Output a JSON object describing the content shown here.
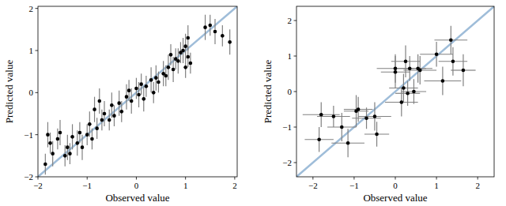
{
  "chart_data": [
    {
      "type": "scatter",
      "x_label": "Observed value",
      "y_label": "Predicted value",
      "color": "#000000",
      "error_color": "#808080",
      "line_color": "#9fbdd9",
      "xlim": [
        -2,
        2.05
      ],
      "ylim": [
        -2,
        2.05
      ],
      "xticks": [
        {
          "value": -2,
          "label": "−2"
        },
        {
          "value": -1,
          "label": "−1"
        },
        0,
        1,
        2
      ],
      "yticks": [
        {
          "value": -2,
          "label": "−2"
        },
        {
          "value": -1,
          "label": "−1"
        },
        0,
        1,
        2
      ],
      "x": [
        -1.85,
        -1.8,
        -1.75,
        -1.7,
        -1.6,
        -1.55,
        -1.45,
        -1.4,
        -1.35,
        -1.3,
        -1.2,
        -1.15,
        -1.1,
        -1.0,
        -0.95,
        -0.9,
        -0.85,
        -0.8,
        -0.75,
        -0.7,
        -0.65,
        -0.55,
        -0.5,
        -0.45,
        -0.35,
        -0.3,
        -0.2,
        -0.15,
        -0.1,
        0.0,
        0.05,
        0.1,
        0.15,
        0.2,
        0.3,
        0.35,
        0.4,
        0.45,
        0.55,
        0.6,
        0.65,
        0.7,
        0.75,
        0.8,
        0.85,
        0.9,
        0.95,
        1.0,
        1.0,
        1.05,
        1.05,
        1.1,
        1.4,
        1.5,
        1.6,
        1.75,
        1.9
      ],
      "values": [
        -1.7,
        -1.0,
        -1.2,
        -1.45,
        -1.1,
        -0.95,
        -1.5,
        -1.3,
        -1.45,
        -1.05,
        -1.2,
        -0.95,
        -1.3,
        -1.0,
        -0.75,
        -1.1,
        -0.4,
        -0.85,
        -0.2,
        -0.65,
        -0.5,
        -0.65,
        -0.3,
        -0.55,
        -0.25,
        -0.45,
        -0.1,
        0.05,
        -0.2,
        0.1,
        -0.05,
        0.2,
        -0.15,
        0.15,
        0.3,
        0.0,
        0.35,
        0.25,
        0.45,
        0.4,
        0.6,
        0.9,
        0.55,
        0.8,
        0.75,
        0.95,
        1.0,
        0.6,
        1.1,
        0.85,
        1.3,
        0.7,
        1.55,
        1.6,
        1.45,
        1.35,
        1.2
      ],
      "y_errors": [
        0.25,
        0.3,
        0.25,
        0.3,
        0.25,
        0.3,
        0.25,
        0.3,
        0.25,
        0.3,
        0.3,
        0.25,
        0.3,
        0.25,
        0.3,
        0.25,
        0.3,
        0.25,
        0.3,
        0.25,
        0.3,
        0.25,
        0.3,
        0.25,
        0.3,
        0.25,
        0.3,
        0.25,
        0.3,
        0.25,
        0.3,
        0.25,
        0.3,
        0.25,
        0.3,
        0.25,
        0.3,
        0.25,
        0.3,
        0.25,
        0.3,
        0.25,
        0.3,
        0.25,
        0.3,
        0.25,
        0.3,
        0.25,
        0.3,
        0.25,
        0.3,
        0.25,
        0.3,
        0.25,
        0.3,
        0.25,
        0.3
      ]
    },
    {
      "type": "scatter",
      "x_label": "Observed value",
      "y_label": "Predicted value",
      "color": "#000000",
      "error_color": "#808080",
      "line_color": "#9fbdd9",
      "xlim": [
        -2.4,
        2.4
      ],
      "ylim": [
        -2.4,
        2.4
      ],
      "xticks": [
        {
          "value": -2,
          "label": "−2"
        },
        {
          "value": -1,
          "label": "−1"
        },
        0,
        1,
        2
      ],
      "yticks": [
        {
          "value": -2,
          "label": "−2"
        },
        {
          "value": -1,
          "label": "−1"
        },
        0,
        1,
        2
      ],
      "x": [
        -1.85,
        -1.8,
        -1.5,
        -1.3,
        -1.15,
        -0.95,
        -0.9,
        -0.7,
        -0.5,
        -0.45,
        0.0,
        0.0,
        0.15,
        0.2,
        0.25,
        0.3,
        0.35,
        0.45,
        0.55,
        0.6,
        1.0,
        1.15,
        1.35,
        1.4,
        1.65
      ],
      "values": [
        -1.35,
        -0.65,
        -0.7,
        -1.0,
        -1.45,
        -0.55,
        -0.5,
        -0.75,
        -0.7,
        -1.2,
        0.65,
        0.55,
        -0.3,
        0.1,
        0.85,
        -0.05,
        0.65,
        0.0,
        0.65,
        0.6,
        1.05,
        0.3,
        1.45,
        0.85,
        0.6
      ],
      "x_errors": [
        0.35,
        0.45,
        0.4,
        0.35,
        0.4,
        0.3,
        0.35,
        0.35,
        0.4,
        0.3,
        0.45,
        0.35,
        0.4,
        0.35,
        0.35,
        0.3,
        0.4,
        0.3,
        0.35,
        0.4,
        0.4,
        0.45,
        0.4,
        0.35,
        0.3
      ],
      "y_errors": [
        0.35,
        0.35,
        0.3,
        0.4,
        0.4,
        0.45,
        0.35,
        0.3,
        0.4,
        0.35,
        0.4,
        0.45,
        0.4,
        0.4,
        0.45,
        0.35,
        0.35,
        0.35,
        0.4,
        0.4,
        0.35,
        0.4,
        0.4,
        0.4,
        0.45
      ]
    }
  ]
}
